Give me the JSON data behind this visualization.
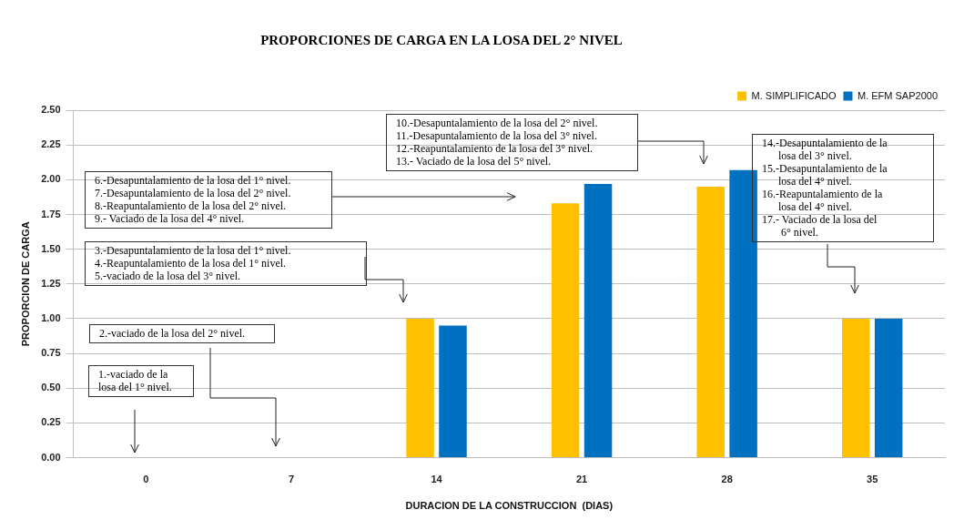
{
  "chart_data": {
    "type": "bar",
    "title": "PROPORCIONES DE CARGA EN LA LOSA DEL 2° NIVEL",
    "xlabel": "DURACION DE LA CONSTRUCCION  (DIAS)",
    "ylabel": "PROPORCION DE CARGA",
    "categories": [
      "0",
      "7",
      "14",
      "21",
      "28",
      "35"
    ],
    "series": [
      {
        "name": "M. SIMPLIFICADO",
        "color": "#ffc000",
        "values": [
          null,
          null,
          1.0,
          1.83,
          1.95,
          1.0
        ]
      },
      {
        "name": "M. EFM SAP2000",
        "color": "#0070c0",
        "values": [
          null,
          null,
          0.95,
          1.97,
          2.07,
          1.0
        ]
      }
    ],
    "ylim": [
      0,
      2.5
    ],
    "yticks": [
      {
        "value": 0,
        "label": "0.00"
      },
      {
        "value": 0.25,
        "label": "0.25"
      },
      {
        "value": 0.5,
        "label": "0.50"
      },
      {
        "value": 0.75,
        "label": "0.75"
      },
      {
        "value": 1,
        "label": "1.00"
      },
      {
        "value": 1.25,
        "label": "1.25"
      },
      {
        "value": 1.5,
        "label": "1.50"
      },
      {
        "value": 1.75,
        "label": "1.75"
      },
      {
        "value": 2,
        "label": "2.00"
      },
      {
        "value": 2.25,
        "label": "2.25"
      },
      {
        "value": 2.5,
        "label": "2.50"
      }
    ],
    "grid": "y",
    "legend": "top right",
    "annotations": [
      "1.-vaciado de la\nlosa del 1° nivel.",
      "2.-vaciado de la losa del 2° nivel.",
      "3.-Desapuntalamiento de la losa del 1° nivel.\n4.-Reapuntalamiento de la losa del 1° nivel.\n5.-vaciado de la losa del 3° nivel.",
      "6.-Desapuntalamiento de la losa del 1° nivel.\n7.-Desapuntalamiento de la losa del 2° nivel.\n8.-Reapuntalamiento de la losa del 2° nivel.\n9.- Vaciado de la losa del 4° nivel.",
      "10.-Desapuntalamiento de la losa del 2° nivel.\n11.-Desapuntalamiento de la losa del 3° nivel.\n12.-Reapuntalamiento de la losa del 3° nivel.\n13.- Vaciado de la losa del 5° nivel.",
      "14.-Desapuntalamiento de la\n      losa del 3° nivel.\n15.-Desapuntalamiento de la\n      losa del 4° nivel.\n16.-Reapuntalamiento de la\n      losa del 4° nivel.\n17.- Vaciado de la losa del\n       6° nivel."
    ]
  }
}
